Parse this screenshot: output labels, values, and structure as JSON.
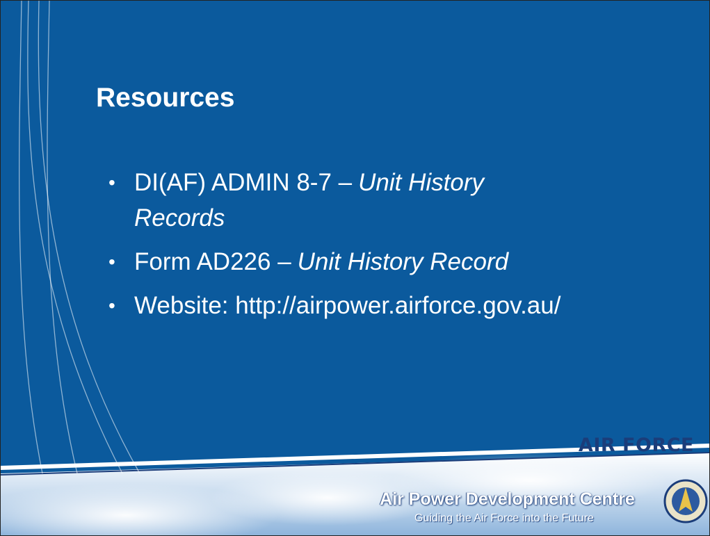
{
  "slide": {
    "title": "Resources",
    "bullets": [
      {
        "text": "DI(AF) ADMIN 8-7 –",
        "emphasis": "Unit History Records"
      },
      {
        "text": "Form AD226 –",
        "emphasis": "Unit History Record"
      },
      {
        "text": "Website: http://airpower.airforce.gov.au/"
      }
    ],
    "footer": {
      "brand": "AIR FORCE",
      "organisation": "Air Power Development Centre",
      "tagline": "Guiding the Air Force into the Future"
    }
  }
}
